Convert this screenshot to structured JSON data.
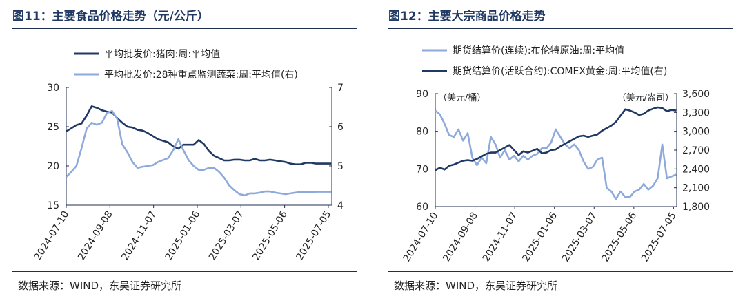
{
  "figures": [
    {
      "title": "图11：主要食品价格走势（元/公斤）",
      "source": "数据来源：WIND，东吴证券研究所"
    },
    {
      "title": "图12：主要大宗商品价格走势",
      "source": "数据来源：WIND，东吴证券研究所"
    }
  ],
  "chart_data": [
    {
      "type": "line",
      "legend_position": "top-left",
      "grid": false,
      "x_ticks": [
        "2024-07-10",
        "2024-09-08",
        "2024-11-07",
        "2025-01-06",
        "2025-03-07",
        "2025-05-06",
        "2025-07-05"
      ],
      "y_left": {
        "range": [
          15,
          30
        ],
        "ticks": [
          "30",
          "25",
          "20",
          "15"
        ]
      },
      "y_right": {
        "range": [
          4,
          7
        ],
        "ticks": [
          "7",
          "6",
          "5",
          "4"
        ]
      },
      "series": [
        {
          "name": "平均批发价:猪肉:周:平均值",
          "axis": "left",
          "color": "#1f3864",
          "x": [
            "2024-07-10",
            "2024-07-17",
            "2024-07-24",
            "2024-07-31",
            "2024-08-07",
            "2024-08-14",
            "2024-08-21",
            "2024-08-28",
            "2024-09-04",
            "2024-09-11",
            "2024-09-18",
            "2024-09-25",
            "2024-10-02",
            "2024-10-09",
            "2024-10-16",
            "2024-10-23",
            "2024-10-30",
            "2024-11-06",
            "2024-11-13",
            "2024-11-20",
            "2024-11-27",
            "2024-12-04",
            "2024-12-11",
            "2024-12-18",
            "2024-12-25",
            "2025-01-01",
            "2025-01-08",
            "2025-01-15",
            "2025-01-22",
            "2025-01-29",
            "2025-02-05",
            "2025-02-12",
            "2025-02-19",
            "2025-02-26",
            "2025-03-05",
            "2025-03-12",
            "2025-03-19",
            "2025-03-26",
            "2025-04-02",
            "2025-04-09",
            "2025-04-16",
            "2025-04-23",
            "2025-04-30",
            "2025-05-07",
            "2025-05-14",
            "2025-05-21",
            "2025-05-28",
            "2025-06-04",
            "2025-06-11",
            "2025-06-18",
            "2025-06-25",
            "2025-07-02",
            "2025-07-09"
          ],
          "y": [
            24.4,
            24.8,
            25.2,
            25.4,
            26.4,
            27.6,
            27.4,
            27.1,
            26.9,
            26.8,
            26.1,
            25.5,
            25.0,
            24.9,
            24.6,
            24.5,
            24.2,
            23.8,
            23.4,
            23.2,
            23.0,
            22.5,
            22.2,
            22.7,
            22.7,
            22.7,
            23.3,
            22.8,
            21.9,
            21.3,
            21.0,
            20.7,
            20.7,
            20.8,
            20.8,
            20.7,
            20.7,
            20.9,
            20.7,
            20.7,
            20.8,
            20.7,
            20.6,
            20.5,
            20.3,
            20.2,
            20.2,
            20.4,
            20.4,
            20.3,
            20.3,
            20.3,
            20.3
          ]
        },
        {
          "name": "平均批发价:28种重点监测蔬菜:周:平均值(右)",
          "axis": "right",
          "color": "#8eaadb",
          "x": [
            "2024-07-10",
            "2024-07-17",
            "2024-07-24",
            "2024-07-31",
            "2024-08-07",
            "2024-08-14",
            "2024-08-21",
            "2024-08-28",
            "2024-09-04",
            "2024-09-11",
            "2024-09-18",
            "2024-09-25",
            "2024-10-02",
            "2024-10-09",
            "2024-10-16",
            "2024-10-23",
            "2024-10-30",
            "2024-11-06",
            "2024-11-13",
            "2024-11-20",
            "2024-11-27",
            "2024-12-04",
            "2024-12-11",
            "2024-12-18",
            "2024-12-25",
            "2025-01-01",
            "2025-01-08",
            "2025-01-15",
            "2025-01-22",
            "2025-01-29",
            "2025-02-05",
            "2025-02-12",
            "2025-02-19",
            "2025-02-26",
            "2025-03-05",
            "2025-03-12",
            "2025-03-19",
            "2025-03-26",
            "2025-04-02",
            "2025-04-09",
            "2025-04-16",
            "2025-04-23",
            "2025-04-30",
            "2025-05-07",
            "2025-05-14",
            "2025-05-21",
            "2025-05-28",
            "2025-06-04",
            "2025-06-11",
            "2025-06-18",
            "2025-06-25",
            "2025-07-02",
            "2025-07-09"
          ],
          "y": [
            4.72,
            4.85,
            5.0,
            5.45,
            5.95,
            6.1,
            6.05,
            6.1,
            6.35,
            6.4,
            6.2,
            5.55,
            5.35,
            5.1,
            4.95,
            4.98,
            5.0,
            5.02,
            5.1,
            5.15,
            5.2,
            5.4,
            5.68,
            5.4,
            5.15,
            5.0,
            4.9,
            4.9,
            4.95,
            4.95,
            4.85,
            4.7,
            4.5,
            4.38,
            4.28,
            4.25,
            4.3,
            4.3,
            4.32,
            4.35,
            4.35,
            4.32,
            4.3,
            4.28,
            4.3,
            4.32,
            4.34,
            4.33,
            4.33,
            4.34,
            4.34,
            4.34,
            4.34
          ]
        }
      ]
    },
    {
      "type": "line",
      "legend_position": "top-left",
      "grid": false,
      "x_ticks": [
        "2024-07-10",
        "2024-09-08",
        "2024-11-07",
        "2025-01-06",
        "2025-03-07",
        "2025-05-06",
        "2025-07-05"
      ],
      "y_left": {
        "range": [
          60,
          90
        ],
        "ticks": [
          "90",
          "80",
          "70",
          "60"
        ],
        "unit_label": "（美元/桶）"
      },
      "y_right": {
        "range": [
          1800,
          3600
        ],
        "ticks": [
          "3,600",
          "3,300",
          "3,000",
          "2,700",
          "2,400",
          "2,100",
          "1,800"
        ],
        "unit_label": "（美元/盎司）"
      },
      "series": [
        {
          "name": "期货结算价(连续):布伦特原油:周:平均值",
          "axis": "left",
          "color": "#8eaadb",
          "x": [
            "2024-07-10",
            "2024-07-17",
            "2024-07-24",
            "2024-07-31",
            "2024-08-07",
            "2024-08-14",
            "2024-08-21",
            "2024-08-28",
            "2024-09-04",
            "2024-09-11",
            "2024-09-18",
            "2024-09-25",
            "2024-10-02",
            "2024-10-09",
            "2024-10-16",
            "2024-10-23",
            "2024-10-30",
            "2024-11-06",
            "2024-11-13",
            "2024-11-20",
            "2024-11-27",
            "2024-12-04",
            "2024-12-11",
            "2024-12-18",
            "2024-12-25",
            "2025-01-01",
            "2025-01-08",
            "2025-01-15",
            "2025-01-22",
            "2025-01-29",
            "2025-02-05",
            "2025-02-12",
            "2025-02-19",
            "2025-02-26",
            "2025-03-05",
            "2025-03-12",
            "2025-03-19",
            "2025-03-26",
            "2025-04-02",
            "2025-04-09",
            "2025-04-16",
            "2025-04-23",
            "2025-04-30",
            "2025-05-07",
            "2025-05-14",
            "2025-05-21",
            "2025-05-28",
            "2025-06-04",
            "2025-06-11",
            "2025-06-18",
            "2025-06-25",
            "2025-07-02",
            "2025-07-09"
          ],
          "y": [
            85.5,
            84.5,
            82.0,
            79.0,
            78.5,
            80.5,
            77.5,
            79.5,
            73.0,
            71.0,
            73.0,
            71.5,
            78.5,
            76.5,
            73.0,
            75.0,
            72.5,
            73.5,
            72.0,
            73.5,
            72.5,
            73.5,
            74.0,
            75.5,
            75.5,
            77.0,
            80.5,
            78.5,
            76.5,
            75.5,
            76.5,
            75.0,
            72.0,
            70.0,
            70.5,
            72.5,
            73.0,
            65.0,
            64.0,
            62.0,
            64.0,
            62.5,
            62.5,
            64.0,
            64.5,
            66.0,
            64.5,
            65.5,
            67.5,
            76.5,
            67.5,
            68.0,
            68.5
          ]
        },
        {
          "name": "期货结算价(活跃合约):COMEX黄金:周:平均值(右)",
          "axis": "right",
          "color": "#1f3864",
          "x": [
            "2024-07-10",
            "2024-07-17",
            "2024-07-24",
            "2024-07-31",
            "2024-08-07",
            "2024-08-14",
            "2024-08-21",
            "2024-08-28",
            "2024-09-04",
            "2024-09-11",
            "2024-09-18",
            "2024-09-25",
            "2024-10-02",
            "2024-10-09",
            "2024-10-16",
            "2024-10-23",
            "2024-10-30",
            "2024-11-06",
            "2024-11-13",
            "2024-11-20",
            "2024-11-27",
            "2024-12-04",
            "2024-12-11",
            "2024-12-18",
            "2024-12-25",
            "2025-01-01",
            "2025-01-08",
            "2025-01-15",
            "2025-01-22",
            "2025-01-29",
            "2025-02-05",
            "2025-02-12",
            "2025-02-19",
            "2025-02-26",
            "2025-03-05",
            "2025-03-12",
            "2025-03-19",
            "2025-03-26",
            "2025-04-02",
            "2025-04-09",
            "2025-04-16",
            "2025-04-23",
            "2025-04-30",
            "2025-05-07",
            "2025-05-14",
            "2025-05-21",
            "2025-05-28",
            "2025-06-04",
            "2025-06-11",
            "2025-06-18",
            "2025-06-25",
            "2025-07-02",
            "2025-07-09"
          ],
          "y": [
            2380,
            2420,
            2390,
            2450,
            2470,
            2500,
            2530,
            2540,
            2530,
            2560,
            2600,
            2640,
            2660,
            2660,
            2700,
            2740,
            2780,
            2700,
            2620,
            2680,
            2660,
            2690,
            2720,
            2650,
            2660,
            2700,
            2710,
            2760,
            2800,
            2840,
            2880,
            2920,
            2930,
            2910,
            2930,
            2950,
            3010,
            3050,
            3090,
            3150,
            3250,
            3350,
            3330,
            3300,
            3260,
            3280,
            3330,
            3360,
            3380,
            3370,
            3320,
            3340,
            3330
          ]
        }
      ]
    }
  ]
}
